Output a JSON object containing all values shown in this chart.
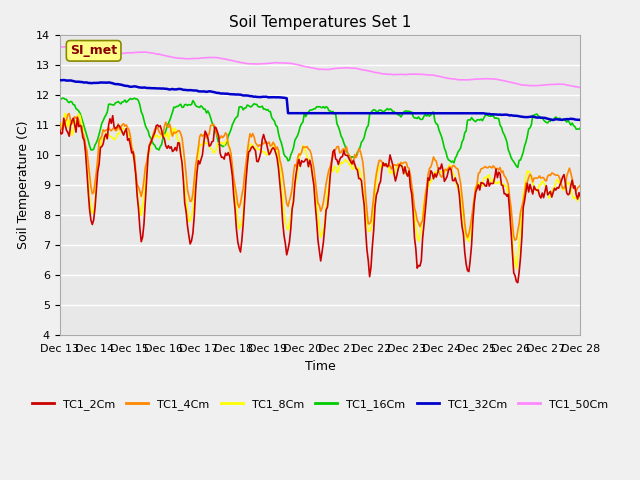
{
  "title": "Soil Temperatures Set 1",
  "xlabel": "Time",
  "ylabel": "Soil Temperature (C)",
  "ylim": [
    4.0,
    14.0
  ],
  "yticks": [
    4.0,
    5.0,
    6.0,
    7.0,
    8.0,
    9.0,
    10.0,
    11.0,
    12.0,
    13.0,
    14.0
  ],
  "xtick_labels": [
    "Dec 13",
    "Dec 14",
    "Dec 15",
    "Dec 16",
    "Dec 17",
    "Dec 18",
    "Dec 19",
    "Dec 20",
    "Dec 21",
    "Dec 22",
    "Dec 23",
    "Dec 24",
    "Dec 25",
    "Dec 26",
    "Dec 27",
    "Dec 28"
  ],
  "series_colors": {
    "TC1_2Cm": "#cc0000",
    "TC1_4Cm": "#ff8800",
    "TC1_8Cm": "#ffff00",
    "TC1_16Cm": "#00cc00",
    "TC1_32Cm": "#0000cc",
    "TC1_50Cm": "#ff88ff"
  },
  "legend_label_SI": "SI_met",
  "fig_bg_color": "#f0f0f0",
  "plot_bg_color": "#e8e8e8",
  "grid_color": "#ffffff",
  "annotation_bg": "#ffff88",
  "annotation_text_color": "#880000"
}
